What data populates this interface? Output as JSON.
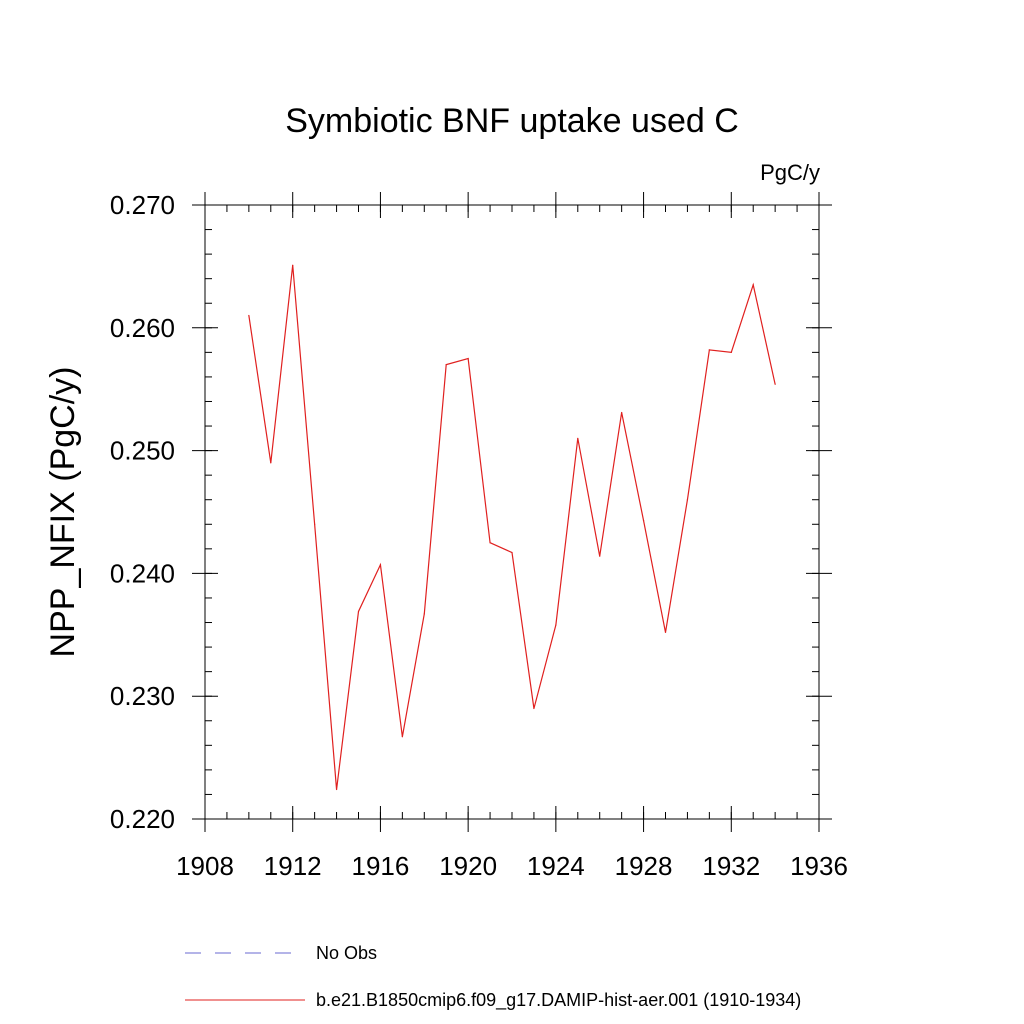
{
  "chart_data": {
    "type": "line",
    "title": "Symbiotic BNF uptake used C",
    "units": "PgC/y",
    "xlabel": "",
    "ylabel": "NPP_NFIX  (PgC/y)",
    "xlim": [
      1908,
      1936
    ],
    "ylim": [
      0.22,
      0.27
    ],
    "x_ticks": [
      1908,
      1912,
      1916,
      1920,
      1924,
      1928,
      1932,
      1936
    ],
    "x_tick_labels": [
      "1908",
      "1912",
      "1916",
      "1920",
      "1924",
      "1928",
      "1932",
      "1936"
    ],
    "y_ticks": [
      0.22,
      0.23,
      0.24,
      0.25,
      0.26,
      0.27
    ],
    "y_tick_labels": [
      "0.220",
      "0.230",
      "0.240",
      "0.250",
      "0.260",
      "0.270"
    ],
    "grid": false,
    "legend_position": "bottom",
    "series": [
      {
        "name": "No Obs",
        "color": "#6a6ad0",
        "style": "dashed",
        "x": [],
        "y": []
      },
      {
        "name": "b.e21.B1850cmip6.f09_g17.DAMIP-hist-aer.001 (1910-1934)",
        "color": "#e0201f",
        "style": "solid",
        "x": [
          1910,
          1911,
          1912,
          1913,
          1914,
          1915,
          1916,
          1917,
          1918,
          1919,
          1920,
          1921,
          1922,
          1923,
          1924,
          1925,
          1926,
          1927,
          1928,
          1929,
          1930,
          1931,
          1932,
          1933,
          1934
        ],
        "y": [
          0.261,
          0.249,
          0.2651,
          0.244,
          0.2224,
          0.2369,
          0.2407,
          0.2267,
          0.2367,
          0.257,
          0.2575,
          0.2425,
          0.2417,
          0.229,
          0.2358,
          0.251,
          0.2414,
          0.2531,
          0.2443,
          0.2352,
          0.246,
          0.2582,
          0.258,
          0.2635,
          0.2554
        ]
      }
    ]
  }
}
